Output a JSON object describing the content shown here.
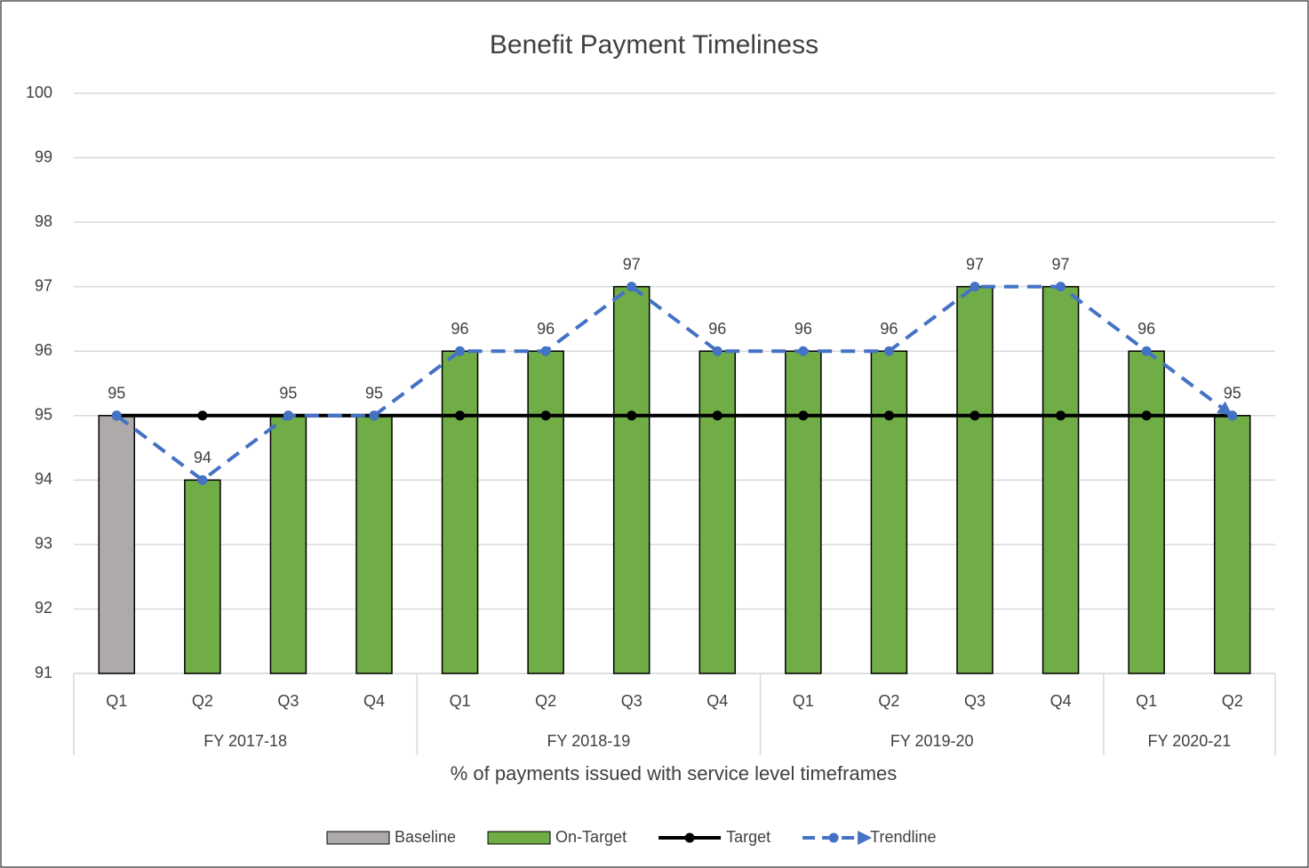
{
  "chart_data": {
    "type": "bar",
    "title": "Benefit Payment Timeliness",
    "x_label": "% of payments issued with service level timeframes",
    "groups": [
      {
        "label": "FY 2017-18",
        "categories": [
          "Q1",
          "Q2",
          "Q3",
          "Q4"
        ]
      },
      {
        "label": "FY 2018-19",
        "categories": [
          "Q1",
          "Q2",
          "Q3",
          "Q4"
        ]
      },
      {
        "label": "FY 2019-20",
        "categories": [
          "Q1",
          "Q2",
          "Q3",
          "Q4"
        ]
      },
      {
        "label": "FY 2020-21",
        "categories": [
          "Q1",
          "Q2"
        ]
      }
    ],
    "series": [
      {
        "name": "Baseline",
        "type": "bar",
        "color": "#aeaaaa",
        "values": [
          95,
          null,
          null,
          null,
          null,
          null,
          null,
          null,
          null,
          null,
          null,
          null,
          null,
          null
        ]
      },
      {
        "name": "On-Target",
        "type": "bar",
        "color": "#70ad47",
        "values": [
          null,
          94,
          95,
          95,
          96,
          96,
          97,
          96,
          96,
          96,
          97,
          97,
          96,
          95
        ]
      },
      {
        "name": "Target",
        "type": "line",
        "color": "#000000",
        "values": [
          95,
          95,
          95,
          95,
          95,
          95,
          95,
          95,
          95,
          95,
          95,
          95,
          95,
          95
        ]
      },
      {
        "name": "Trendline",
        "type": "line",
        "dashed": true,
        "color": "#4472c4",
        "values": [
          95,
          94,
          95,
          95,
          96,
          96,
          97,
          96,
          96,
          96,
          97,
          97,
          96,
          95
        ]
      }
    ],
    "ylim": [
      91,
      100
    ],
    "yticks": [
      91,
      92,
      93,
      94,
      95,
      96,
      97,
      98,
      99,
      100
    ],
    "grid": true,
    "legend": "bottom"
  }
}
